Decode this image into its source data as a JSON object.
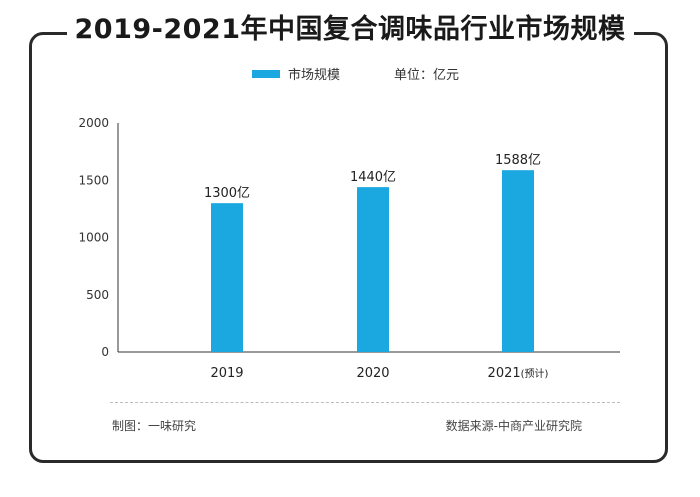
{
  "title": "2019-2021年中国复合调味品行业市场规模",
  "legend": {
    "series_label": "市场规模",
    "unit_label": "单位：亿元"
  },
  "footer": {
    "left": "制图：一味研究",
    "right": "数据来源-中商产业研究院"
  },
  "colors": {
    "bar": "#1ba8e0",
    "frame": "#2a2a2a"
  },
  "chart_data": {
    "type": "bar",
    "categories": [
      "2019",
      "2020",
      "2021"
    ],
    "category_notes": [
      "",
      "",
      "(预计)"
    ],
    "values": [
      1300,
      1440,
      1588
    ],
    "data_labels": [
      "1300亿",
      "1440亿",
      "1588亿"
    ],
    "yticks": [
      "0",
      "500",
      "1000",
      "1500",
      "2000"
    ],
    "ylim": [
      0,
      2000
    ],
    "grid": false,
    "legend_position": "top-center",
    "series": [
      {
        "name": "市场规模",
        "values": [
          1300,
          1440,
          1588
        ]
      }
    ]
  }
}
